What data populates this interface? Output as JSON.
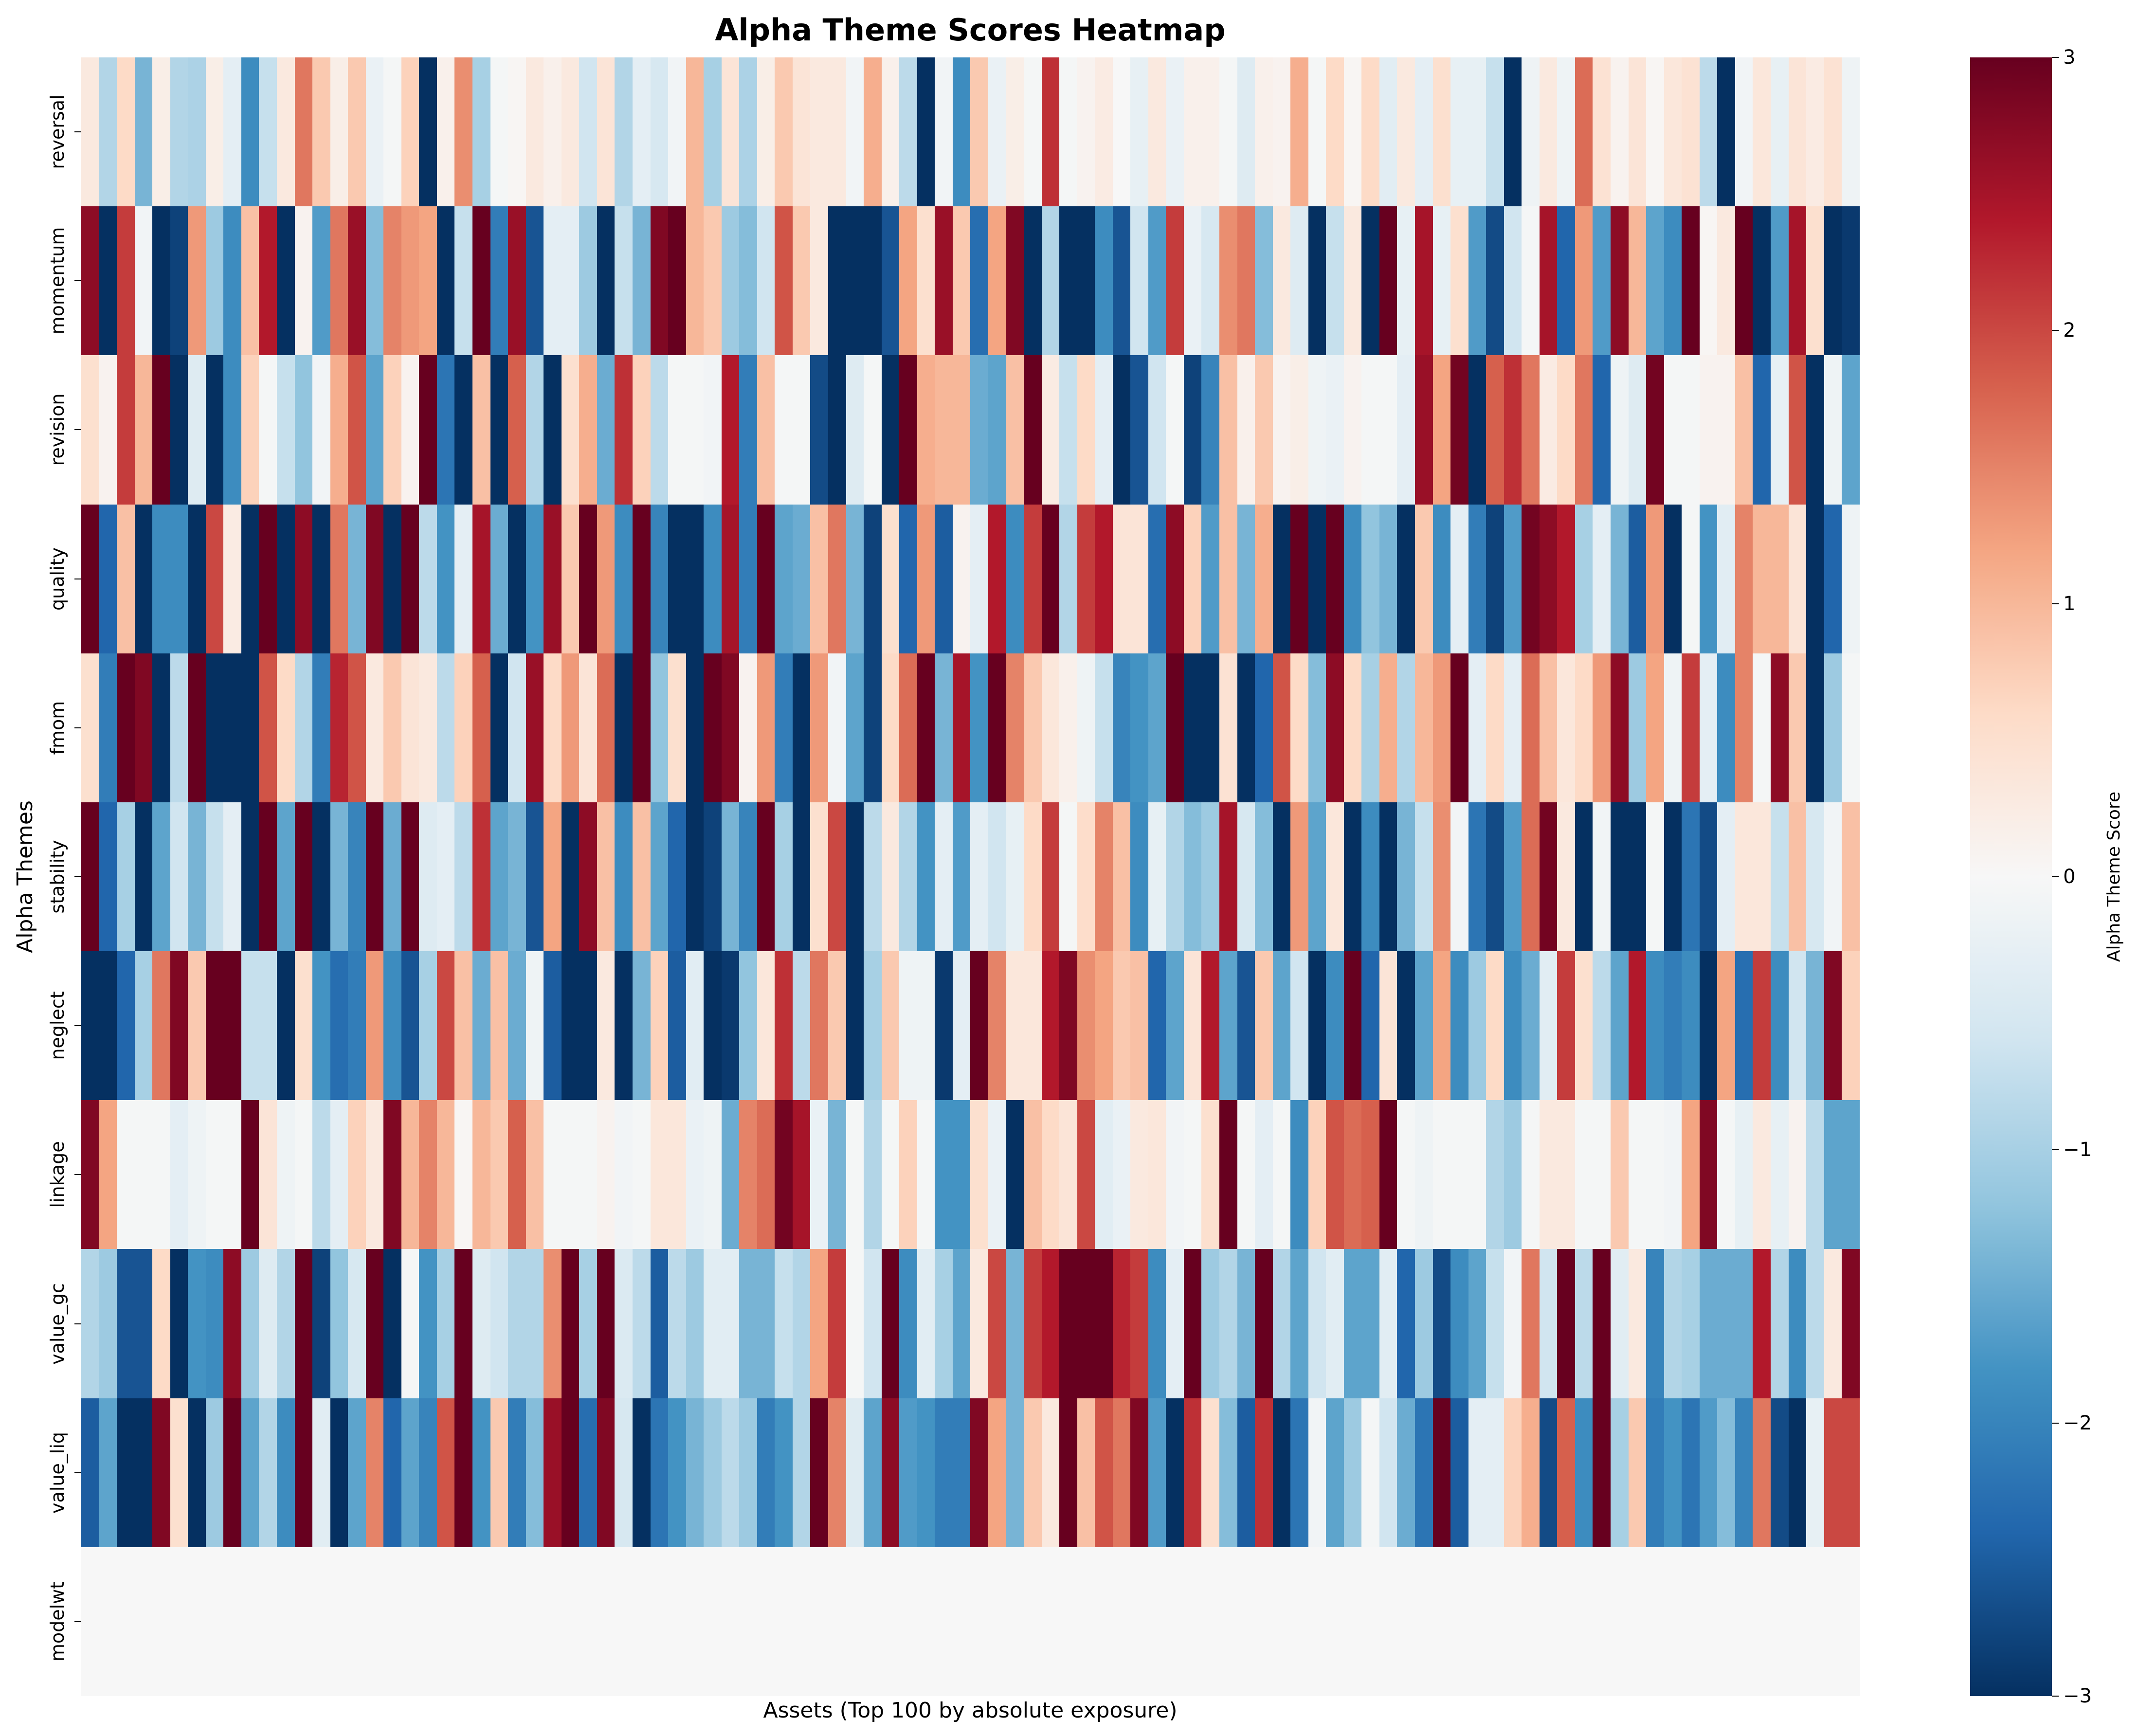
{
  "chart_data": {
    "type": "heatmap",
    "title": "Alpha Theme Scores Heatmap",
    "xlabel": "Assets (Top 100 by absolute exposure)",
    "ylabel": "Alpha Themes",
    "colormap": "RdBu_r",
    "vmin": -3,
    "vmax": 3,
    "x_tick_labels_shown": false,
    "n_columns": 100,
    "rows": [
      "reversal",
      "momentum",
      "revision",
      "quality",
      "fmom",
      "stability",
      "neglect",
      "linkage",
      "value_gc",
      "value_liq",
      "modelwt"
    ],
    "colorbar": {
      "label": "Alpha Theme Score",
      "ticks": [
        3,
        2,
        1,
        0,
        -1,
        -2,
        -3
      ],
      "tick_labels": [
        "3",
        "2",
        "1",
        "0",
        "−1",
        "−2",
        "−3"
      ]
    },
    "values": {
      "reversal": [
        0.3,
        -0.9,
        0.6,
        -1.4,
        0.2,
        -0.9,
        -0.95,
        0.2,
        -0.3,
        -1.9,
        -0.7,
        0.3,
        1.6,
        0.8,
        0.2,
        0.8,
        -0.2,
        -0.05,
        0.7,
        -3,
        0.15,
        1.4,
        -1.0,
        -0.05,
        0.05,
        0.3,
        0.15,
        0.3,
        -0.6,
        0.4,
        -0.9,
        -0.3,
        -0.5,
        -0.1,
        1.0,
        -1.0,
        0.4,
        -0.95,
        0.2,
        0.8,
        0.4,
        0.3,
        0.3,
        -0.1,
        1.1,
        0.15,
        -0.8,
        -3,
        -0.1,
        -1.9,
        0.8,
        -0.2,
        0.2,
        -0.05,
        2.2,
        -0.05,
        0.1,
        0.25,
        0.0,
        -0.25,
        0.3,
        -0.2,
        0.15,
        0.15,
        -0.05,
        -0.4,
        0.15,
        0.1,
        1.1,
        -0.05,
        0.6,
        0.05,
        0.6,
        -0.35,
        0.3,
        -0.3,
        0.5,
        -0.25,
        -0.25,
        -0.7,
        -3,
        -0.15,
        0.3,
        -0.15,
        1.7,
        0.45,
        0.1,
        0.4,
        0.05,
        0.35,
        0.45,
        -0.8,
        -3,
        -0.1,
        0.35,
        -0.25,
        0.4,
        0.25,
        0.45,
        -0.15
      ],
      "momentum": [
        2.7,
        -3,
        2.1,
        -0.1,
        -3,
        -2.8,
        1.3,
        -1.1,
        -1.9,
        0.9,
        2.4,
        -3,
        0.1,
        -1.7,
        1.6,
        2.6,
        -1.3,
        1.5,
        1.3,
        1.2,
        -3,
        -0.7,
        3,
        -2.1,
        2.6,
        -2.6,
        -0.3,
        -0.3,
        -1.1,
        -3,
        -0.7,
        -1.4,
        2.8,
        3,
        1.0,
        0.8,
        -1.1,
        -1.3,
        -0.6,
        1.9,
        0.8,
        0.3,
        -3,
        -3,
        -3,
        -2.6,
        1.2,
        0.5,
        2.6,
        0.8,
        -2.3,
        1.2,
        2.8,
        -3,
        -0.9,
        -3,
        -3,
        -1.9,
        -2.6,
        -0.6,
        -1.7,
        2.1,
        -0.2,
        -0.5,
        1.4,
        1.6,
        -1.3,
        0.3,
        -0.4,
        -3,
        -0.7,
        0.3,
        -3,
        3,
        -0.25,
        2.5,
        -0.25,
        0.5,
        -1.7,
        -2.7,
        -0.6,
        -0.05,
        2.5,
        -2.4,
        1.3,
        -1.7,
        2.7,
        1.0,
        -1.6,
        -1.9,
        3,
        0.05,
        0.3,
        3,
        -3,
        -1.7,
        2.5,
        0.5,
        -3,
        -2.9
      ],
      "revision": [
        0.5,
        0.1,
        2.1,
        1.0,
        3,
        -3,
        -0.4,
        -3,
        -1.9,
        0.7,
        -0.05,
        -0.7,
        -1.2,
        -0.1,
        1.1,
        1.9,
        -1.6,
        0.7,
        0.1,
        3,
        -2.2,
        -3,
        0.9,
        -3,
        1.8,
        -0.9,
        -3,
        0.5,
        1.1,
        -1.5,
        2.2,
        0.7,
        -0.8,
        -0.05,
        -0.05,
        -0.1,
        2.4,
        -2.1,
        0.9,
        -0.05,
        -0.05,
        -2.7,
        -3,
        -0.4,
        -0.05,
        -3,
        3,
        1.1,
        1.0,
        1.0,
        -1.5,
        -1.6,
        0.9,
        3,
        0.25,
        -0.7,
        0.6,
        -0.3,
        -3,
        -2.6,
        -0.6,
        -0.05,
        -2.8,
        -2.0,
        0.9,
        0.15,
        0.8,
        0.1,
        0.2,
        -0.15,
        -0.2,
        0.1,
        -0.05,
        -0.05,
        -0.3,
        2.6,
        1.2,
        2.9,
        -3,
        1.8,
        2.2,
        1.6,
        0.25,
        0.6,
        1.6,
        -2.4,
        -0.15,
        -0.4,
        2.9,
        -0.05,
        -0.05,
        0.1,
        0.1,
        0.9,
        -2.4,
        -0.25,
        1.9,
        -3,
        -0.15,
        -1.6
      ],
      "quality": [
        3,
        -2.4,
        0.9,
        -3,
        -1.9,
        -1.9,
        -3,
        2.0,
        0.25,
        -3,
        3,
        -3,
        2.7,
        -3,
        1.6,
        -1.4,
        2.8,
        -3,
        3,
        -0.8,
        -1.8,
        -0.3,
        2.5,
        -1.5,
        -3,
        -1.8,
        2.6,
        0.8,
        3,
        1.3,
        -1.9,
        3,
        -2.0,
        -3,
        -3,
        -1.9,
        2.5,
        -2.1,
        3,
        -1.6,
        -1.5,
        0.9,
        1.6,
        -1.4,
        -2.8,
        0.5,
        -2.4,
        1.3,
        -2.5,
        0.1,
        -0.3,
        2.4,
        -1.9,
        2.1,
        3,
        -0.9,
        2.1,
        2.4,
        0.4,
        0.4,
        -2.3,
        2.7,
        0.7,
        -1.7,
        0.9,
        -1.4,
        1.1,
        -3,
        3,
        -3,
        3,
        -1.9,
        -1.2,
        -1.4,
        -3,
        0.8,
        -1.9,
        -0.3,
        -2.1,
        -2.8,
        -1.7,
        2.9,
        2.7,
        2.4,
        -1.0,
        -0.3,
        -1.4,
        -2.5,
        1.3,
        -3,
        -0.05,
        -1.8,
        -0.35,
        1.5,
        1.0,
        1.0,
        0.4,
        -3,
        -2.4,
        -0.15
      ],
      "fmom": [
        0.5,
        -2.1,
        3,
        2.8,
        -3,
        -0.8,
        3,
        -3,
        -3,
        -3,
        1.9,
        0.6,
        -0.9,
        -2.1,
        2.3,
        1.9,
        0.3,
        0.8,
        0.4,
        0.3,
        -0.8,
        0.7,
        1.8,
        -3,
        -0.6,
        2.6,
        0.6,
        1.3,
        0.4,
        1.7,
        -3,
        3,
        -1.2,
        0.5,
        -3,
        3,
        2.8,
        0.1,
        1.3,
        -2.1,
        -3,
        1.3,
        -0.1,
        -1.6,
        -2.8,
        0.6,
        1.7,
        3,
        -1.4,
        2.5,
        -1.8,
        3,
        1.5,
        0.8,
        0.35,
        0.15,
        -0.15,
        -0.7,
        -2.0,
        -1.8,
        -1.6,
        3,
        -3,
        -3,
        0.45,
        -3,
        -2.4,
        1.9,
        0.6,
        -1.3,
        2.7,
        0.6,
        -1.0,
        1.1,
        -0.9,
        1.0,
        1.3,
        3,
        -0.3,
        0.6,
        -0.3,
        1.7,
        0.9,
        0.35,
        0.6,
        1.3,
        2.7,
        -1.1,
        1.2,
        -0.15,
        2.1,
        -0.3,
        -1.9,
        1.5,
        -0.05,
        2.7,
        0.8,
        -3,
        -1.1,
        -0.05
      ],
      "stability": [
        3,
        -2.4,
        -1.0,
        -3,
        -1.6,
        -0.6,
        -1.4,
        -0.7,
        -0.3,
        -3,
        3,
        -1.6,
        3,
        -3,
        -1.4,
        -2.0,
        3,
        -1.5,
        3,
        -0.4,
        -0.3,
        -0.8,
        2.2,
        -1.6,
        -1.4,
        -2.6,
        1.2,
        -3,
        2.7,
        0.9,
        -1.9,
        0.9,
        -1.6,
        -2.4,
        -3,
        -2.8,
        -1.4,
        -2.0,
        3,
        -1.0,
        -3,
        0.5,
        2.0,
        -3,
        -0.8,
        0.3,
        -0.9,
        -1.8,
        -0.3,
        -1.7,
        -0.3,
        -0.6,
        -0.25,
        0.6,
        2.1,
        -0.05,
        0.55,
        1.5,
        0.9,
        -1.9,
        -0.25,
        -0.9,
        -1.3,
        -1.1,
        2.5,
        -0.5,
        -1.3,
        -3,
        1.3,
        -1.6,
        0.35,
        -3,
        -1.9,
        -3,
        -1.4,
        -0.7,
        1.4,
        -0.1,
        -2.2,
        -2.7,
        -1.7,
        1.7,
        2.9,
        0.3,
        -3,
        -0.1,
        -3,
        -3,
        -0.05,
        -3,
        -2.2,
        -2.7,
        -0.3,
        0.35,
        0.35,
        -0.7,
        0.9,
        -0.5,
        -0.1,
        0.9
      ],
      "neglect": [
        -3,
        -3,
        -2.4,
        -1.0,
        1.6,
        2.8,
        0.8,
        3,
        3,
        -0.7,
        -0.7,
        -3,
        0.5,
        -1.8,
        -2.3,
        -2.1,
        1.3,
        -1.9,
        -2.6,
        -1.0,
        2.0,
        0.9,
        -1.5,
        0.9,
        -1.5,
        -0.15,
        -2.5,
        -3,
        -3,
        0.3,
        -3,
        -1.4,
        0.7,
        -2.5,
        -0.35,
        -3,
        -2.9,
        -1.2,
        0.35,
        2.2,
        -0.8,
        1.6,
        0.8,
        -3,
        -1.0,
        0.8,
        -0.15,
        -0.15,
        -2.9,
        -0.3,
        3,
        1.5,
        0.35,
        0.35,
        2.4,
        2.8,
        1.4,
        1.2,
        0.8,
        0.9,
        -2.4,
        -1.6,
        0.4,
        2.4,
        -1.6,
        -2.6,
        0.8,
        -1.6,
        -0.6,
        -3,
        -1.9,
        3,
        -2.4,
        0.4,
        -3,
        -1.6,
        1.2,
        -1.9,
        -1.1,
        0.6,
        -1.9,
        -1.5,
        -0.35,
        2.1,
        0.5,
        -0.8,
        -1.6,
        2.4,
        -1.9,
        -2.1,
        -1.9,
        -3,
        1.2,
        -2.3,
        2.1,
        -1.9,
        -0.6,
        -1.4,
        2.8,
        0.7
      ],
      "linkage": [
        2.8,
        1.2,
        -0.05,
        -0.05,
        -0.05,
        -0.3,
        -0.15,
        -0.05,
        -0.05,
        3,
        0.4,
        -0.15,
        -0.05,
        -0.8,
        -0.3,
        0.7,
        0.3,
        2.8,
        1.0,
        1.5,
        1.0,
        0.05,
        1.0,
        0.8,
        1.8,
        0.9,
        -0.05,
        -0.05,
        -0.05,
        0.1,
        -0.1,
        -0.05,
        0.35,
        0.35,
        -0.2,
        -0.15,
        -1.5,
        1.5,
        1.7,
        2.9,
        2.5,
        -0.2,
        -1.4,
        -0.05,
        -0.9,
        -0.05,
        0.7,
        -0.05,
        -1.8,
        -1.8,
        0.5,
        -0.2,
        -3,
        0.9,
        0.6,
        0.4,
        2.0,
        -0.35,
        -0.2,
        0.3,
        0.35,
        -0.1,
        -0.05,
        0.5,
        3,
        -0.05,
        -0.3,
        -0.05,
        -1.9,
        0.7,
        1.9,
        1.7,
        1.8,
        3,
        -0.05,
        -0.15,
        -0.05,
        -0.05,
        -0.05,
        -0.9,
        -1.1,
        -0.05,
        0.3,
        0.3,
        -0.05,
        -0.05,
        0.8,
        -0.05,
        -0.05,
        -0.1,
        1.2,
        2.8,
        -0.05,
        -0.25,
        0.3,
        -0.25,
        0.1,
        -0.8,
        -1.6,
        -1.6
      ],
      "value_gc": [
        -0.9,
        -1.1,
        -2.6,
        -2.6,
        0.6,
        -3,
        -1.8,
        -1.9,
        2.7,
        -1.1,
        -0.4,
        -0.9,
        3,
        -2.8,
        -1.2,
        -0.5,
        3,
        -3,
        -0.05,
        -1.8,
        -1.0,
        3,
        -0.4,
        -0.6,
        -0.9,
        -0.9,
        1.4,
        3,
        -1.0,
        3,
        -0.45,
        -0.8,
        -2.5,
        -0.8,
        -1.1,
        -0.35,
        -0.35,
        -1.4,
        -1.4,
        -0.7,
        -0.9,
        1.2,
        2.1,
        -0.05,
        -0.6,
        3,
        -1.9,
        -0.35,
        -1.0,
        -1.6,
        0.3,
        2.0,
        -1.4,
        2.1,
        2.4,
        3,
        3,
        3,
        2.3,
        2.1,
        -1.9,
        -0.3,
        3,
        -1.1,
        -0.9,
        -1.4,
        3,
        -0.9,
        -1.6,
        -0.6,
        -0.35,
        -1.6,
        -1.6,
        -0.35,
        -2.4,
        -1.1,
        -2.7,
        -1.9,
        -1.6,
        -0.7,
        -0.1,
        1.6,
        -0.6,
        3,
        -0.8,
        3,
        -0.35,
        0.3,
        -2.0,
        -0.9,
        -1.0,
        -1.5,
        -1.5,
        -1.5,
        2.4,
        -0.9,
        -1.9,
        -0.8,
        0.3,
        2.8
      ],
      "value_liq": [
        -2.5,
        -1.6,
        -3,
        -3,
        2.8,
        0.5,
        -3,
        -1.1,
        3,
        -1.6,
        -0.9,
        -1.9,
        3,
        -0.35,
        -3,
        -1.6,
        1.5,
        -2.4,
        -1.6,
        -2.0,
        1.9,
        3,
        -1.8,
        0.8,
        -2.1,
        -1.3,
        2.6,
        3,
        -2.3,
        2.8,
        -0.5,
        -3,
        -2.2,
        -1.8,
        -1.4,
        -1.1,
        -0.8,
        -1.1,
        -2.1,
        -1.8,
        -0.9,
        3,
        1.5,
        -0.4,
        -1.6,
        2.7,
        -1.7,
        -1.8,
        -2.1,
        -2.1,
        2.8,
        1.2,
        -1.4,
        0.8,
        0.3,
        3,
        0.9,
        1.9,
        1.6,
        2.8,
        -1.7,
        -3,
        2.2,
        0.5,
        -1.3,
        -2.5,
        2.2,
        -3,
        -2.2,
        -0.1,
        -1.6,
        -1.1,
        -0.05,
        -0.6,
        -1.5,
        -2.2,
        3,
        -2.5,
        -0.3,
        -0.3,
        0.7,
        1.1,
        -2.7,
        1.8,
        -1.9,
        3,
        -1.0,
        0.8,
        -2.1,
        -1.8,
        -2.2,
        -1.7,
        -1.3,
        -2.0,
        1.6,
        -2.7,
        -3,
        -0.25,
        2.0,
        2.0
      ],
      "modelwt": [
        0,
        0,
        0,
        0,
        0,
        0,
        0,
        0,
        0,
        0,
        0,
        0,
        0,
        0,
        0,
        0,
        0,
        0,
        0,
        0,
        0,
        0,
        0,
        0,
        0,
        0,
        0,
        0,
        0,
        0,
        0,
        0,
        0,
        0,
        0,
        0,
        0,
        0,
        0,
        0,
        0,
        0,
        0,
        0,
        0,
        0,
        0,
        0,
        0,
        0,
        0,
        0,
        0,
        0,
        0,
        0,
        0,
        0,
        0,
        0,
        0,
        0,
        0,
        0,
        0,
        0,
        0,
        0,
        0,
        0,
        0,
        0,
        0,
        0,
        0,
        0,
        0,
        0,
        0,
        0,
        0,
        0,
        0,
        0,
        0,
        0,
        0,
        0,
        0,
        0,
        0,
        0,
        0,
        0,
        0,
        0,
        0,
        0,
        0,
        0
      ]
    }
  },
  "labels": {
    "title": "Alpha Theme Scores Heatmap",
    "xlabel": "Assets (Top 100 by absolute exposure)",
    "ylabel": "Alpha Themes",
    "colorbar_label": "Alpha Theme Score"
  },
  "colors": {
    "rdbu_r_stops": [
      "#053061",
      "#2166ac",
      "#4393c3",
      "#92c5de",
      "#d1e5f0",
      "#f7f7f7",
      "#fddbc7",
      "#f4a582",
      "#d6604d",
      "#b2182b",
      "#67001f"
    ]
  }
}
